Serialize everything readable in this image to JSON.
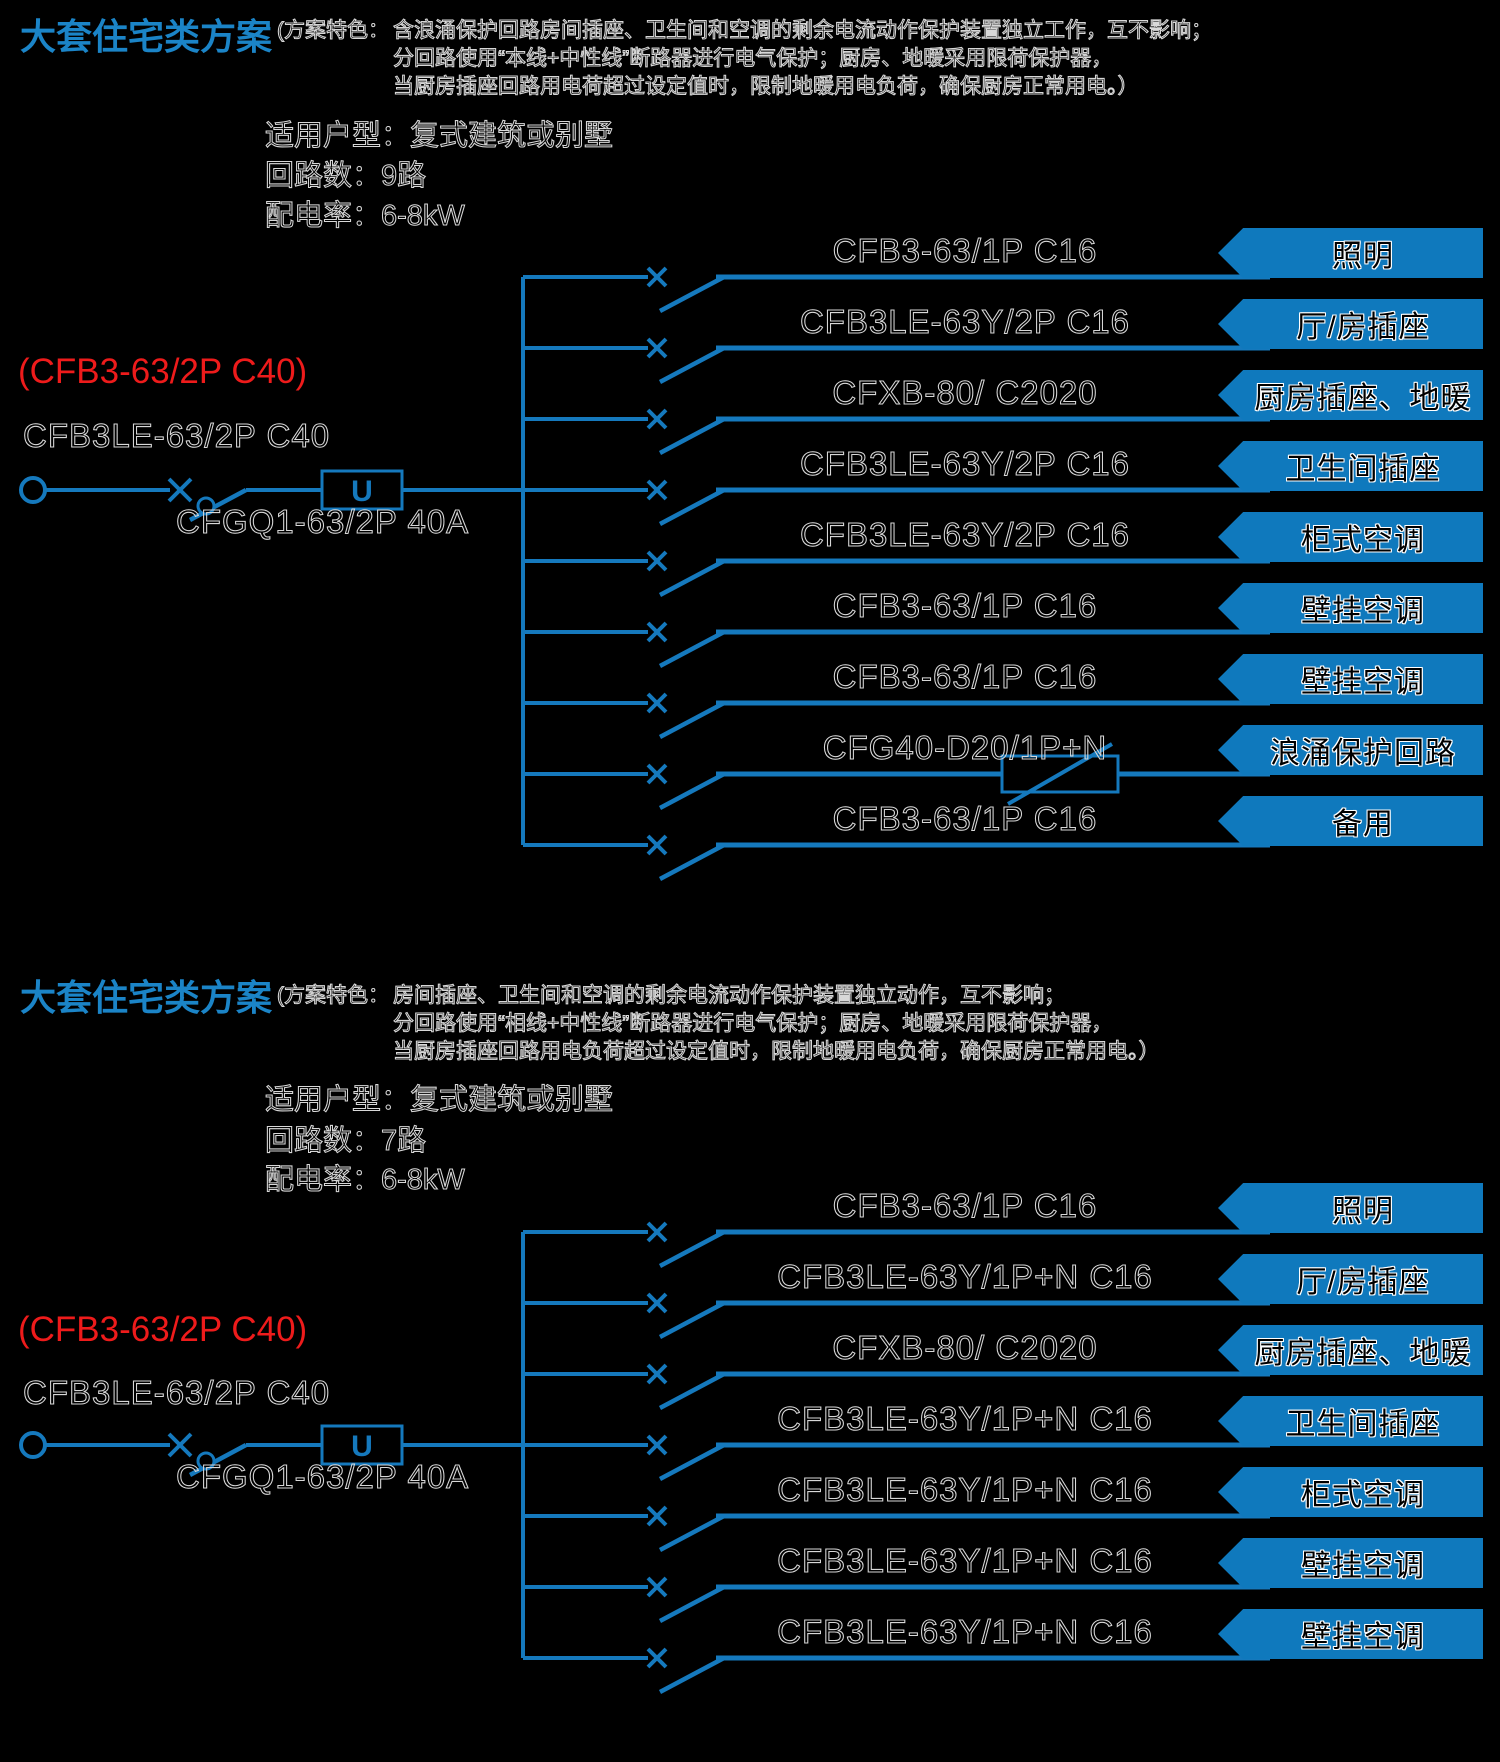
{
  "colors": {
    "background": "#000000",
    "title_blue": "#1B84C7",
    "line_blue": "#1579BD",
    "banner_blue": "#0F79BD",
    "red": "#EE1B1B",
    "outline_text": "#D8D8D8"
  },
  "symbols": {
    "supply_terminal": "circle",
    "breaker_contact": "x-mark",
    "isolator_switch": "diagonal-blade-with-circle",
    "rcd_mark": "U",
    "surge_arrester": "box-with-diagonal-arrow"
  },
  "sections": [
    {
      "title": "大套住宅类方案",
      "feature_label": "(方案特色：",
      "feature_lines": [
        "含浪涌保护回路房间插座、卫生间和空调的剩余电流动作保护装置独立工作，互不影响；",
        "分回路使用“本线+中性线”断路器进行电气保护；厨房、地暖采用限荷保护器，",
        "当厨房插座回路用电荷超过设定值时，限制地暖用电负荷，确保厨房正常用电。）"
      ],
      "info": [
        "适用户型：复式建筑或别墅",
        "回路数：9路",
        "配电率：6-8kW"
      ],
      "main_breaker": {
        "alt_model": "(CFB3-63/2P C40)",
        "model": "CFB3LE-63/2P C40",
        "isolator_model": "CFGQ1-63/2P 40A",
        "rcd_mark": "U"
      },
      "circuits": [
        {
          "model": "CFB3-63/1P C16",
          "load": "照明"
        },
        {
          "model": "CFB3LE-63Y/2P C16",
          "load": "厅/房插座"
        },
        {
          "model": "CFXB-80/ C2020",
          "load": "厨房插座、地暖"
        },
        {
          "model": "CFB3LE-63Y/2P C16",
          "load": "卫生间插座"
        },
        {
          "model": "CFB3LE-63Y/2P C16",
          "load": "柜式空调"
        },
        {
          "model": "CFB3-63/1P C16",
          "load": "壁挂空调"
        },
        {
          "model": "CFB3-63/1P C16",
          "load": "壁挂空调"
        },
        {
          "model": "CFG40-D20/1P+N",
          "load": "浪涌保护回路",
          "surge": true
        },
        {
          "model": "CFB3-63/1P C16",
          "load": "备用"
        }
      ]
    },
    {
      "title": "大套住宅类方案",
      "feature_label": "(方案特色：",
      "feature_lines": [
        "房间插座、卫生间和空调的剩余电流动作保护装置独立动作，互不影响；",
        "分回路使用“相线+中性线”断路器进行电气保护；厨房、地暖采用限荷保护器，",
        "当厨房插座回路用电负荷超过设定值时，限制地暖用电负荷，确保厨房正常用电。）"
      ],
      "info": [
        "适用户型：复式建筑或别墅",
        "回路数：7路",
        "配电率：6-8kW"
      ],
      "main_breaker": {
        "alt_model": "(CFB3-63/2P C40)",
        "model": "CFB3LE-63/2P C40",
        "isolator_model": "CFGQ1-63/2P 40A",
        "rcd_mark": "U"
      },
      "circuits": [
        {
          "model": "CFB3-63/1P C16",
          "load": "照明"
        },
        {
          "model": "CFB3LE-63Y/1P+N C16",
          "load": "厅/房插座"
        },
        {
          "model": "CFXB-80/ C2020",
          "load": "厨房插座、地暖"
        },
        {
          "model": "CFB3LE-63Y/1P+N C16",
          "load": "卫生间插座"
        },
        {
          "model": "CFB3LE-63Y/1P+N C16",
          "load": "柜式空调"
        },
        {
          "model": "CFB3LE-63Y/1P+N C16",
          "load": "壁挂空调"
        },
        {
          "model": "CFB3LE-63Y/1P+N C16",
          "load": "壁挂空调"
        }
      ]
    }
  ]
}
